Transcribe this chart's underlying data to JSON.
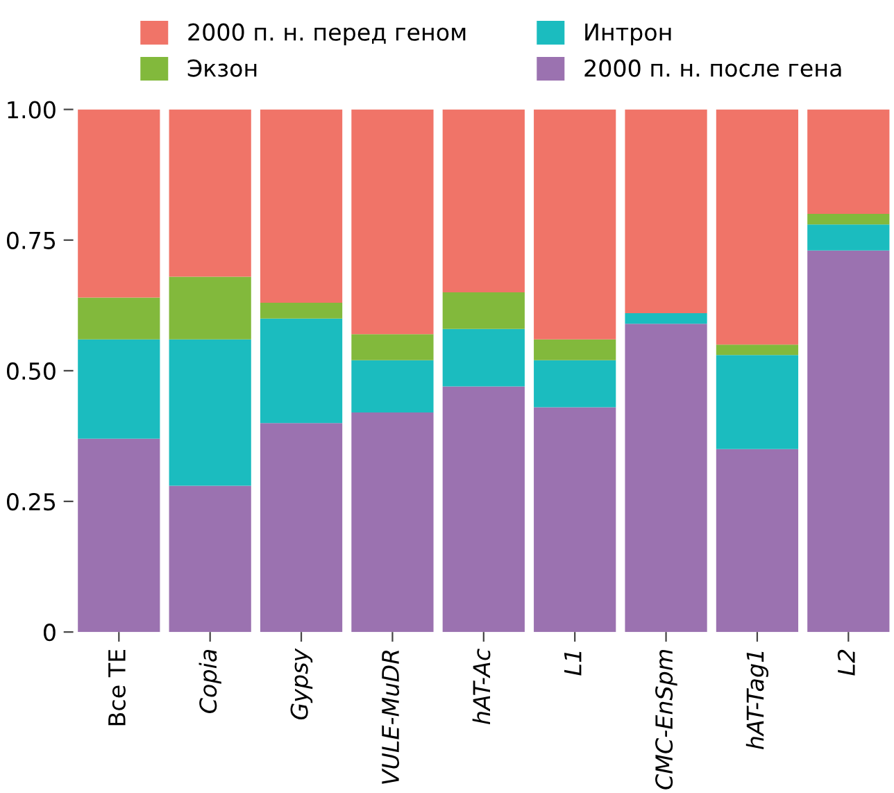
{
  "chart_data": {
    "type": "bar",
    "stacked": true,
    "legend": "top",
    "grid": false,
    "categories": [
      "Все TE",
      "Copia",
      "Gypsy",
      "VULE-MuDR",
      "hAT-Ac",
      "L1",
      "CMC-EnSpm",
      "hAT-Tag1",
      "L2"
    ],
    "series": [
      {
        "name": "2000 п. н. после гена",
        "color": "#9b72b0",
        "values": [
          0.37,
          0.28,
          0.4,
          0.42,
          0.47,
          0.43,
          0.59,
          0.35,
          0.73
        ]
      },
      {
        "name": "Интрон",
        "color": "#1bbcbf",
        "values": [
          0.19,
          0.28,
          0.2,
          0.1,
          0.11,
          0.09,
          0.02,
          0.18,
          0.05
        ]
      },
      {
        "name": "Экзон",
        "color": "#82b93c",
        "values": [
          0.08,
          0.12,
          0.03,
          0.05,
          0.07,
          0.04,
          0.0,
          0.02,
          0.02
        ]
      },
      {
        "name": "2000 п. н. перед геном",
        "color": "#f07468",
        "values": [
          0.36,
          0.32,
          0.37,
          0.43,
          0.35,
          0.44,
          0.39,
          0.45,
          0.2
        ]
      }
    ],
    "ylim": [
      0,
      1
    ],
    "yticks": [
      0,
      {
        "value": 0.25,
        "label": "0.25"
      },
      {
        "value": 0.5,
        "label": "0.50"
      },
      {
        "value": 0.75,
        "label": "0.75"
      },
      {
        "value": 1,
        "label": "1.00"
      }
    ]
  }
}
